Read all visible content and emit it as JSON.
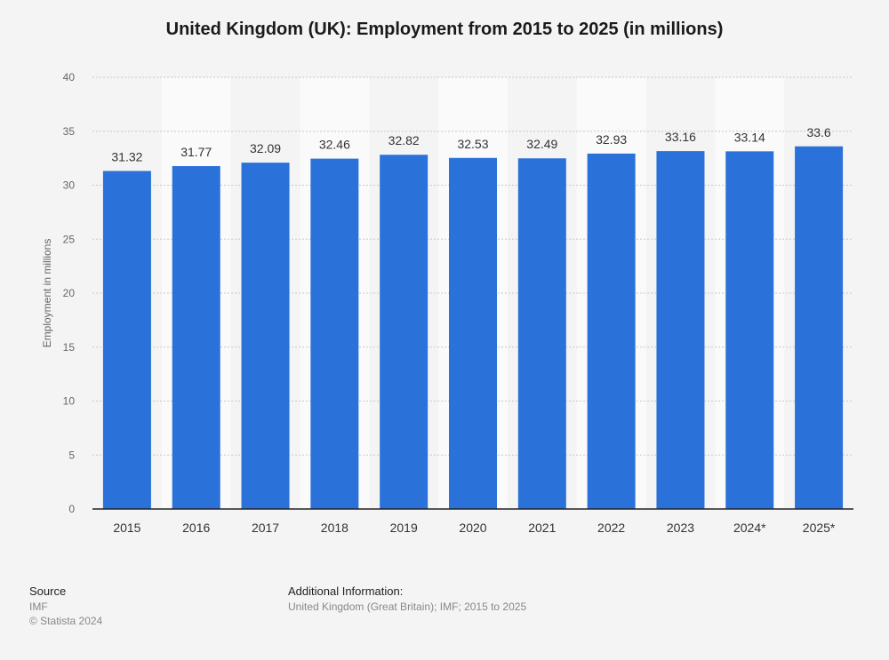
{
  "colors": {
    "bar": "#2a72d9",
    "grid": "#c8c8c8",
    "band": "#fafafa",
    "axis": "#222222"
  },
  "chart_data": {
    "type": "bar",
    "title": "United Kingdom (UK): Employment from 2015 to 2025 (in millions)",
    "ylabel": "Employment in millions",
    "xlabel": "",
    "categories": [
      "2015",
      "2016",
      "2017",
      "2018",
      "2019",
      "2020",
      "2021",
      "2022",
      "2023",
      "2024*",
      "2025*"
    ],
    "values": [
      31.32,
      31.77,
      32.09,
      32.46,
      32.82,
      32.53,
      32.49,
      32.93,
      33.16,
      33.14,
      33.6
    ],
    "data_labels": [
      "31.32",
      "31.77",
      "32.09",
      "32.46",
      "32.82",
      "32.53",
      "32.49",
      "32.93",
      "33.16",
      "33.14",
      "33.6"
    ],
    "ylim": [
      0,
      40
    ],
    "yticks": [
      0,
      5,
      10,
      15,
      20,
      25,
      30,
      35,
      40
    ],
    "grid": true
  },
  "footer": {
    "source_heading": "Source",
    "source_lines": [
      "IMF",
      "© Statista 2024"
    ],
    "info_heading": "Additional Information:",
    "info_text": "United Kingdom (Great Britain); IMF; 2015 to 2025"
  }
}
